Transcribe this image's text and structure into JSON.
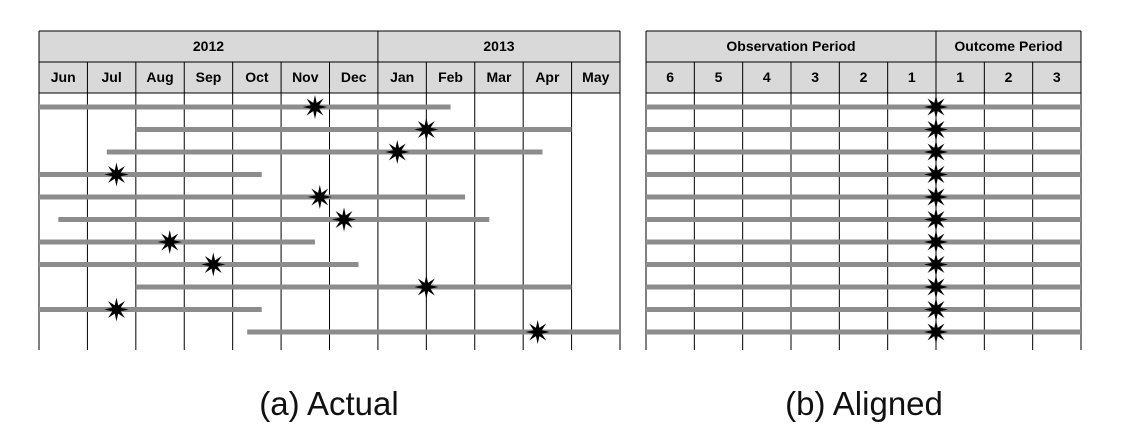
{
  "colors": {
    "header_fill": "#d9d9d9",
    "grid_line": "#000000",
    "bar": "#8c8c8c",
    "event_star": "#000000"
  },
  "actual": {
    "caption": "(a) Actual",
    "year_headers": [
      {
        "label": "2012",
        "span": 7
      },
      {
        "label": "2013",
        "span": 5
      }
    ],
    "months": [
      "Jun",
      "Jul",
      "Aug",
      "Sep",
      "Oct",
      "Nov",
      "Dec",
      "Jan",
      "Feb",
      "Mar",
      "Apr",
      "May"
    ],
    "rows": [
      {
        "start": 0.0,
        "end": 8.5,
        "event": 5.7
      },
      {
        "start": 2.0,
        "end": 11.0,
        "event": 8.0
      },
      {
        "start": 1.4,
        "end": 10.4,
        "event": 7.4
      },
      {
        "start": 0.0,
        "end": 4.6,
        "event": 1.6
      },
      {
        "start": 0.0,
        "end": 8.8,
        "event": 5.8
      },
      {
        "start": 0.4,
        "end": 9.3,
        "event": 6.3
      },
      {
        "start": 0.0,
        "end": 5.7,
        "event": 2.7
      },
      {
        "start": 0.0,
        "end": 6.6,
        "event": 3.6
      },
      {
        "start": 2.0,
        "end": 11.0,
        "event": 8.0
      },
      {
        "start": 0.0,
        "end": 4.6,
        "event": 1.6
      },
      {
        "start": 4.3,
        "end": 12.0,
        "event": 10.3
      }
    ]
  },
  "aligned": {
    "caption": "(b) Aligned",
    "period_headers": [
      {
        "label": "Observation Period",
        "span": 6
      },
      {
        "label": "Outcome Period",
        "span": 3
      }
    ],
    "periods": [
      "6",
      "5",
      "4",
      "3",
      "2",
      "1",
      "1",
      "2",
      "3"
    ],
    "event_at_period_boundary": 6,
    "row_count": 11
  }
}
